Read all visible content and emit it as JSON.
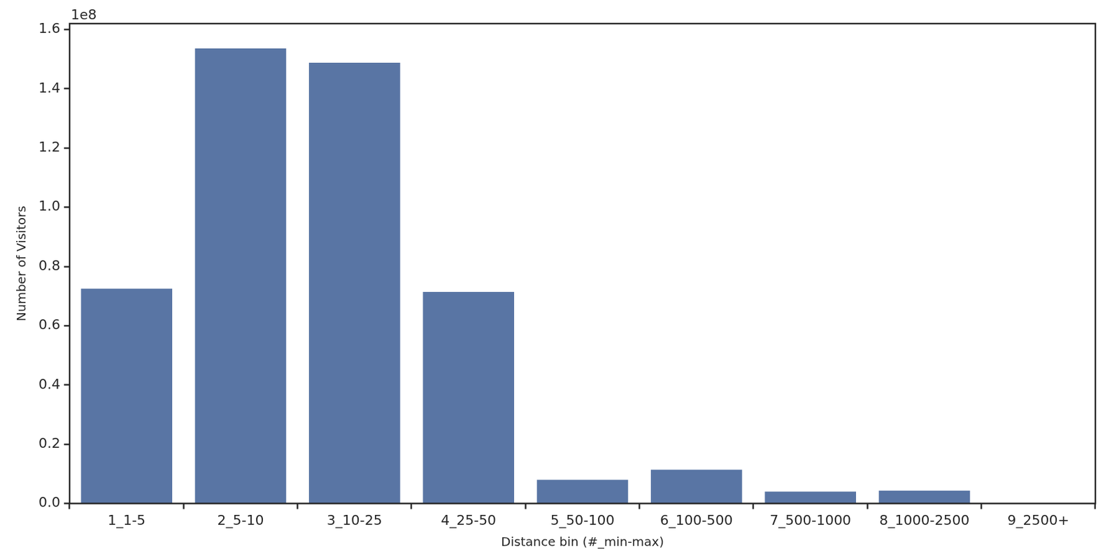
{
  "chart_data": {
    "type": "bar",
    "x_label": "Distance bin (#_min-max)",
    "y_label": "Number of Visitors",
    "annotations": [
      "1e8"
    ],
    "categories": [
      "1_1-5",
      "2_5-10",
      "3_10-25",
      "4_25-50",
      "5_50-100",
      "6_100-500",
      "7_500-1000",
      "8_1000-2500",
      "9_2500+"
    ],
    "values": [
      0.725,
      1.536,
      1.488,
      0.714,
      0.08,
      0.114,
      0.04,
      0.043,
      0
    ],
    "color": "#5975a4",
    "ylim": [
      0,
      1.62
    ],
    "yticks": [
      {
        "value": 0,
        "label": "0.0"
      },
      0.2,
      0.4,
      0.6,
      0.8,
      {
        "value": 1,
        "label": "1.0"
      },
      1.2,
      1.4,
      1.6
    ],
    "grid": false
  }
}
